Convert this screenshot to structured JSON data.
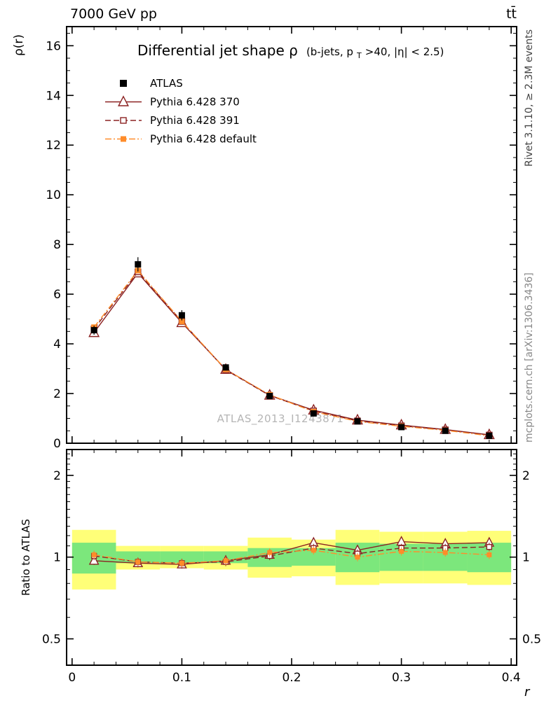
{
  "header": {
    "left": "7000 GeV pp",
    "right": "tt̄"
  },
  "plot_title": {
    "main": "Differential jet shape ρ",
    "sub_pre": "(b-jets, p",
    "sub_subscript": "T",
    "sub_post": ">40, |η| < 2.5)"
  },
  "watermark": "ATLAS_2013_I1243871",
  "side_text_top": "Rivet 3.1.10, ≥ 2.3M events",
  "side_text_bottom": "mcplots.cern.ch [arXiv:1306.3436]",
  "axes": {
    "x_label": "r",
    "y_label_main": "ρ(r)",
    "y_label_ratio": "Ratio to ATLAS",
    "x_ticks": [
      0,
      0.1,
      0.2,
      0.3,
      0.4
    ],
    "y_ticks_main": [
      0,
      2,
      4,
      6,
      8,
      10,
      12,
      14,
      16
    ],
    "y_ticks_ratio": [
      0.5,
      1,
      2
    ]
  },
  "chart_data": {
    "type": "line",
    "title": "Differential jet shape ρ (b-jets, pT>40, |η| < 2.5)",
    "xlabel": "r",
    "ylabel": "ρ(r)",
    "xlim": [
      0,
      0.4
    ],
    "ylim": [
      0,
      16.77
    ],
    "x": [
      0.02,
      0.06,
      0.1,
      0.14,
      0.18,
      0.22,
      0.26,
      0.3,
      0.34,
      0.38
    ],
    "bin_width": 0.04,
    "band_colors": {
      "yellow": "#ffff78",
      "green": "#7ce77c"
    },
    "series": [
      {
        "name": "ATLAS",
        "color": "#000000",
        "marker": "square-filled",
        "line": "none",
        "values": [
          4.55,
          7.2,
          5.15,
          3.05,
          1.9,
          1.2,
          0.88,
          0.65,
          0.5,
          0.3
        ]
      },
      {
        "name": "Pythia 6.428 370",
        "color": "#8b2222",
        "marker": "triangle-open",
        "line": "solid",
        "values": [
          4.45,
          6.85,
          4.85,
          2.97,
          1.93,
          1.33,
          0.93,
          0.73,
          0.55,
          0.34
        ]
      },
      {
        "name": "Pythia 6.428 391",
        "color": "#8b2222",
        "marker": "square-open",
        "line": "dashed",
        "values": [
          4.6,
          6.9,
          4.9,
          2.95,
          1.92,
          1.3,
          0.9,
          0.7,
          0.54,
          0.33
        ]
      },
      {
        "name": "Pythia 6.428 default",
        "color": "#ff8c2a",
        "marker": "square-filled",
        "line": "dashdot",
        "values": [
          4.67,
          6.95,
          4.9,
          2.97,
          1.95,
          1.27,
          0.88,
          0.68,
          0.52,
          0.3
        ]
      }
    ],
    "ratio": {
      "ylabel": "Ratio to ATLAS",
      "scale": "log",
      "ylim": [
        0.4,
        2.49
      ],
      "series": [
        {
          "name": "Pythia 6.428 370",
          "values": [
            0.97,
            0.95,
            0.94,
            0.97,
            1.02,
            1.13,
            1.06,
            1.14,
            1.12,
            1.13
          ]
        },
        {
          "name": "Pythia 6.428 391",
          "values": [
            1.01,
            0.96,
            0.95,
            0.96,
            1.01,
            1.08,
            1.03,
            1.08,
            1.08,
            1.09
          ]
        },
        {
          "name": "Pythia 6.428 default",
          "values": [
            1.02,
            0.96,
            0.95,
            0.97,
            1.04,
            1.06,
            1.0,
            1.05,
            1.04,
            1.02
          ]
        }
      ],
      "bands": [
        {
          "x0": 0.0,
          "x1": 0.04,
          "yellow": [
            0.76,
            1.26
          ],
          "green": [
            0.87,
            1.13
          ]
        },
        {
          "x0": 0.04,
          "x1": 0.08,
          "yellow": [
            0.9,
            1.1
          ],
          "green": [
            0.95,
            1.05
          ]
        },
        {
          "x0": 0.08,
          "x1": 0.12,
          "yellow": [
            0.91,
            1.1
          ],
          "green": [
            0.95,
            1.05
          ]
        },
        {
          "x0": 0.12,
          "x1": 0.16,
          "yellow": [
            0.9,
            1.1
          ],
          "green": [
            0.95,
            1.05
          ]
        },
        {
          "x0": 0.16,
          "x1": 0.2,
          "yellow": [
            0.84,
            1.18
          ],
          "green": [
            0.92,
            1.08
          ]
        },
        {
          "x0": 0.2,
          "x1": 0.24,
          "yellow": [
            0.85,
            1.16
          ],
          "green": [
            0.93,
            1.08
          ]
        },
        {
          "x0": 0.24,
          "x1": 0.28,
          "yellow": [
            0.79,
            1.26
          ],
          "green": [
            0.88,
            1.13
          ]
        },
        {
          "x0": 0.28,
          "x1": 0.32,
          "yellow": [
            0.8,
            1.24
          ],
          "green": [
            0.89,
            1.12
          ]
        },
        {
          "x0": 0.32,
          "x1": 0.36,
          "yellow": [
            0.8,
            1.24
          ],
          "green": [
            0.89,
            1.12
          ]
        },
        {
          "x0": 0.36,
          "x1": 0.4,
          "yellow": [
            0.79,
            1.25
          ],
          "green": [
            0.88,
            1.13
          ]
        }
      ]
    }
  }
}
